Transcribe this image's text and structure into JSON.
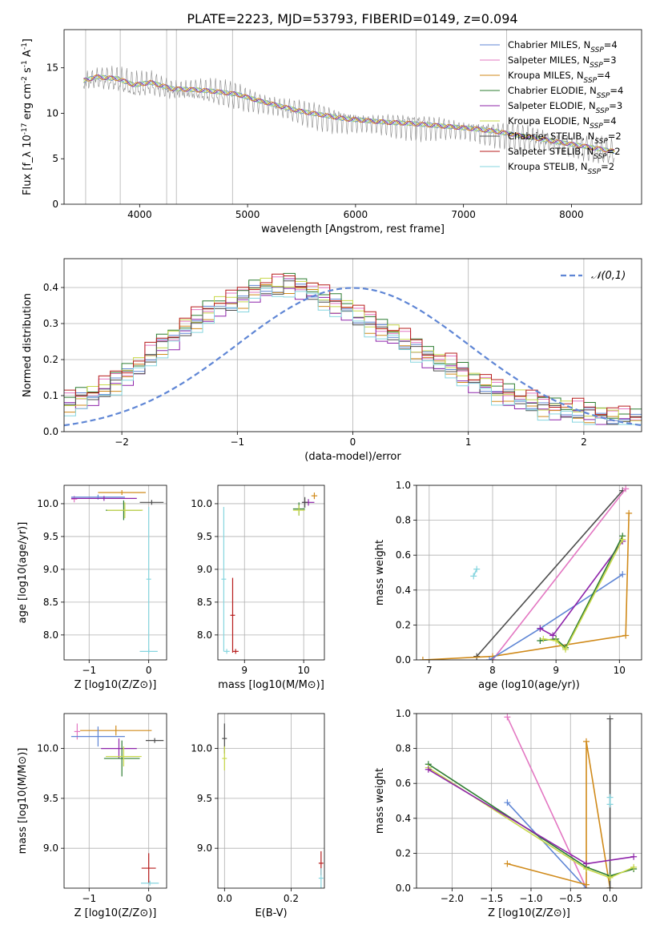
{
  "figure": {
    "suptitle": "PLATE=2223, MJD=53793, FIBERID=0149, z=0.094"
  },
  "colors": {
    "Chabrier MILES": "#5f86d5",
    "Salpeter MILES": "#e377c2",
    "Kroupa MILES": "#d08a1a",
    "Chabrier ELODIE": "#2e7d32",
    "Salpeter ELODIE": "#8e24aa",
    "Kroupa ELODIE": "#c8d84a",
    "Chabrier STELIB": "#4d4d4d",
    "Salpeter STELIB": "#b71c1c",
    "Kroupa STELIB": "#86d5df",
    "normal": "#5f86d5",
    "data": "#888888"
  },
  "chart_data": [
    {
      "id": "spectrum",
      "type": "line",
      "xlabel": "wavelength [Angstrom, rest frame]",
      "ylabel": "Flux [f_λ 10^-17 erg cm^-2 s^-1 A^-1]",
      "xlim": [
        3300,
        8650
      ],
      "ylim": [
        0,
        19.2
      ],
      "xticks": [
        4000,
        5000,
        6000,
        7000,
        8000
      ],
      "yticks": [
        0,
        5,
        10,
        15
      ],
      "grid": false,
      "legend_position": "top-right",
      "legend": [
        {
          "label": "Chabrier MILES, N_SSP=4",
          "model": "Chabrier MILES"
        },
        {
          "label": "Salpeter MILES, N_SSP=3",
          "model": "Salpeter MILES"
        },
        {
          "label": "Kroupa MILES, N_SSP=4",
          "model": "Kroupa MILES"
        },
        {
          "label": "Chabrier ELODIE, N_SSP=4",
          "model": "Chabrier ELODIE"
        },
        {
          "label": "Salpeter ELODIE, N_SSP=3",
          "model": "Salpeter ELODIE"
        },
        {
          "label": "Kroupa ELODIE, N_SSP=4",
          "model": "Kroupa ELODIE"
        },
        {
          "label": "Chabrier STELIB, N_SSP=2",
          "model": "Chabrier STELIB"
        },
        {
          "label": "Salpeter STELIB, N_SSP=2",
          "model": "Salpeter STELIB"
        },
        {
          "label": "Kroupa STELIB, N_SSP=2",
          "model": "Kroupa STELIB"
        }
      ],
      "continuum": [
        [
          3480,
          13.4
        ],
        [
          3600,
          13.8
        ],
        [
          3800,
          13.6
        ],
        [
          3950,
          12.9
        ],
        [
          4100,
          13.2
        ],
        [
          4300,
          12.5
        ],
        [
          4500,
          12.4
        ],
        [
          4700,
          12.2
        ],
        [
          4900,
          11.9
        ],
        [
          5100,
          11.2
        ],
        [
          5300,
          10.6
        ],
        [
          5500,
          10.0
        ],
        [
          5700,
          9.6
        ],
        [
          5900,
          9.2
        ],
        [
          6100,
          9.0
        ],
        [
          6300,
          8.8
        ],
        [
          6500,
          8.7
        ],
        [
          6700,
          8.5
        ],
        [
          6900,
          8.3
        ],
        [
          7100,
          8.1
        ],
        [
          7300,
          7.8
        ],
        [
          7500,
          7.4
        ],
        [
          7700,
          7.0
        ],
        [
          7900,
          6.6
        ],
        [
          8100,
          6.2
        ],
        [
          8250,
          5.9
        ],
        [
          8400,
          5.6
        ]
      ]
    },
    {
      "id": "residuals",
      "type": "area",
      "xlabel": "(data-model)/error",
      "ylabel": "Normed distribution",
      "xlim": [
        -2.5,
        2.5
      ],
      "ylim": [
        0,
        0.48
      ],
      "xticks": [
        -2,
        -1,
        0,
        1,
        2
      ],
      "yticks": [
        0.0,
        0.1,
        0.2,
        0.3,
        0.4
      ],
      "grid": true,
      "legend_position": "top-right",
      "legend": [
        {
          "label": "𝒩(0,1)",
          "model": "normal"
        }
      ],
      "bin_width": 0.1,
      "base": [
        0.08,
        0.09,
        0.1,
        0.12,
        0.14,
        0.16,
        0.18,
        0.21,
        0.24,
        0.26,
        0.29,
        0.31,
        0.33,
        0.35,
        0.36,
        0.37,
        0.39,
        0.4,
        0.4,
        0.41,
        0.4,
        0.39,
        0.37,
        0.35,
        0.34,
        0.32,
        0.3,
        0.28,
        0.27,
        0.25,
        0.23,
        0.21,
        0.19,
        0.18,
        0.16,
        0.14,
        0.13,
        0.11,
        0.1,
        0.09,
        0.08,
        0.07,
        0.065,
        0.06,
        0.055,
        0.05,
        0.045,
        0.04,
        0.035,
        0.03
      ]
    },
    {
      "id": "age_vs_Z",
      "type": "scatter",
      "xlabel": "Z [log10(Z/Z⊙)]",
      "ylabel": "age [log10(age/yr)]",
      "xlim": [
        -1.42,
        0.3
      ],
      "ylim": [
        7.62,
        10.28
      ],
      "xticks": [
        -1,
        0
      ],
      "yticks": [
        8.0,
        8.5,
        9.0,
        9.5,
        10.0
      ],
      "grid": true,
      "points": [
        {
          "model": "Kroupa MILES",
          "x": -0.45,
          "y": 10.17,
          "xerr": 0.4,
          "yerr": 0.0
        },
        {
          "model": "Salpeter MILES",
          "x": -1.25,
          "y": 10.07,
          "xerr": 0.05,
          "yerr": 0.05
        },
        {
          "model": "Chabrier MILES",
          "x": -0.85,
          "y": 10.1,
          "xerr": 0.45,
          "yerr": 0.0
        },
        {
          "model": "Salpeter ELODIE",
          "x": -0.75,
          "y": 10.08,
          "xerr": 0.55,
          "yerr": 0.0
        },
        {
          "model": "Chabrier STELIB",
          "x": 0.05,
          "y": 10.02,
          "xerr": 0.2,
          "yerr": 0.0
        },
        {
          "model": "Chabrier ELODIE",
          "x": -0.42,
          "y": 9.9,
          "xerr": 0.3,
          "yerr": 0.15
        },
        {
          "model": "Kroupa ELODIE",
          "x": -0.4,
          "y": 9.9,
          "xerr": 0.3,
          "yerr": 0.12
        },
        {
          "model": "Kroupa STELIB",
          "x": 0.0,
          "y": 7.75,
          "xerr": 0.15,
          "yerr": 0.0
        },
        {
          "model": "Kroupa STELIB",
          "x": 0.0,
          "y": 8.85,
          "xerr": 0.0,
          "yerr": 1.1
        }
      ]
    },
    {
      "id": "age_vs_mass",
      "type": "scatter",
      "xlabel": "mass [log10(M/M⊙)]",
      "ylabel": "",
      "xlim": [
        8.55,
        10.35
      ],
      "ylim": [
        7.62,
        10.28
      ],
      "xticks": [
        9,
        10
      ],
      "yticks": [
        8.0,
        8.5,
        9.0,
        9.5,
        10.0
      ],
      "grid": true,
      "points": [
        {
          "model": "Kroupa MILES",
          "x": 10.18,
          "y": 10.12,
          "xerr": 0.05,
          "yerr": 0.05
        },
        {
          "model": "Salpeter ELODIE",
          "x": 10.08,
          "y": 10.02,
          "xerr": 0.1,
          "yerr": 0.05
        },
        {
          "model": "Chabrier ELODIE",
          "x": 9.92,
          "y": 9.92,
          "xerr": 0.1,
          "yerr": 0.1
        },
        {
          "model": "Kroupa ELODIE",
          "x": 9.92,
          "y": 9.9,
          "xerr": 0.1,
          "yerr": 0.08
        },
        {
          "model": "Chabrier STELIB",
          "x": 10.02,
          "y": 10.02,
          "xerr": 0.05,
          "yerr": 0.08
        },
        {
          "model": "Kroupa STELIB",
          "x": 8.65,
          "y": 8.85,
          "xerr": 0.0,
          "yerr": 1.1
        },
        {
          "model": "Kroupa STELIB",
          "x": 8.7,
          "y": 7.75,
          "xerr": 0.05,
          "yerr": 0.0
        },
        {
          "model": "Salpeter STELIB",
          "x": 8.8,
          "y": 8.3,
          "xerr": 0.0,
          "yerr": 0.57
        },
        {
          "model": "Salpeter STELIB",
          "x": 8.85,
          "y": 7.75,
          "xerr": 0.05,
          "yerr": 0.0
        }
      ]
    },
    {
      "id": "weight_vs_age",
      "type": "line",
      "xlabel": "age (log10(age/yr))",
      "ylabel": "mass weight",
      "xlim": [
        6.8,
        10.35
      ],
      "ylim": [
        0,
        1.0
      ],
      "xticks": [
        7,
        8,
        9,
        10
      ],
      "yticks": [
        0.0,
        0.2,
        0.4,
        0.6,
        0.8,
        1.0
      ],
      "grid": true,
      "series": [
        {
          "model": "Kroupa STELIB",
          "x": [
            7.7,
            7.75
          ],
          "y": [
            0.48,
            0.52
          ]
        },
        {
          "model": "Chabrier STELIB",
          "x": [
            7.75,
            10.05
          ],
          "y": [
            0.02,
            0.97
          ]
        },
        {
          "model": "Salpeter MILES",
          "x": [
            8.0,
            10.1
          ],
          "y": [
            0.0,
            0.98
          ]
        },
        {
          "model": "Kroupa MILES",
          "x": [
            6.9,
            8.0,
            10.1,
            10.15
          ],
          "y": [
            0.0,
            0.02,
            0.14,
            0.84
          ]
        },
        {
          "model": "Chabrier MILES",
          "x": [
            7.95,
            8.75,
            10.05
          ],
          "y": [
            0.0,
            0.18,
            0.49
          ]
        },
        {
          "model": "Salpeter ELODIE",
          "x": [
            8.75,
            8.95,
            10.05
          ],
          "y": [
            0.18,
            0.14,
            0.68
          ]
        },
        {
          "model": "Chabrier ELODIE",
          "x": [
            8.75,
            9.0,
            9.15,
            10.05
          ],
          "y": [
            0.11,
            0.12,
            0.07,
            0.71
          ]
        },
        {
          "model": "Kroupa ELODIE",
          "x": [
            8.8,
            9.0,
            9.15,
            10.05
          ],
          "y": [
            0.12,
            0.11,
            0.06,
            0.69
          ]
        }
      ]
    },
    {
      "id": "mass_vs_Z",
      "type": "scatter",
      "xlabel": "Z [log10(Z/Z⊙)]",
      "ylabel": "mass [log10(M/M⊙)]",
      "xlim": [
        -1.42,
        0.3
      ],
      "ylim": [
        8.6,
        10.35
      ],
      "xticks": [
        -1,
        0
      ],
      "yticks": [
        9.0,
        9.5,
        10.0
      ],
      "grid": true,
      "points": [
        {
          "model": "Salpeter MILES",
          "x": -1.2,
          "y": 10.17,
          "xerr": 0.05,
          "yerr": 0.08
        },
        {
          "model": "Kroupa MILES",
          "x": -0.55,
          "y": 10.18,
          "xerr": 0.6,
          "yerr": 0.05
        },
        {
          "model": "Chabrier MILES",
          "x": -0.85,
          "y": 10.12,
          "xerr": 0.45,
          "yerr": 0.1
        },
        {
          "model": "Salpeter ELODIE",
          "x": -0.5,
          "y": 10.0,
          "xerr": 0.3,
          "yerr": 0.1
        },
        {
          "model": "Chabrier STELIB",
          "x": 0.1,
          "y": 10.08,
          "xerr": 0.15,
          "yerr": 0.0
        },
        {
          "model": "Chabrier ELODIE",
          "x": -0.45,
          "y": 9.9,
          "xerr": 0.3,
          "yerr": 0.18
        },
        {
          "model": "Kroupa ELODIE",
          "x": -0.42,
          "y": 9.92,
          "xerr": 0.3,
          "yerr": 0.1
        },
        {
          "model": "Salpeter STELIB",
          "x": 0.0,
          "y": 8.8,
          "xerr": 0.12,
          "yerr": 0.15
        },
        {
          "model": "Kroupa STELIB",
          "x": 0.02,
          "y": 8.65,
          "xerr": 0.15,
          "yerr": 0.0
        }
      ]
    },
    {
      "id": "mass_vs_ebv",
      "type": "scatter",
      "xlabel": "E(B-V)",
      "ylabel": "",
      "xlim": [
        -0.02,
        0.3
      ],
      "ylim": [
        8.6,
        10.35
      ],
      "xticks": [
        0.0,
        0.2
      ],
      "yticks": [
        9.0,
        9.5,
        10.0
      ],
      "grid": true,
      "points": [
        {
          "model": "Chabrier STELIB",
          "x": 0.0,
          "y": 10.1,
          "xerr": 0.0,
          "yerr": 0.15
        },
        {
          "model": "Kroupa ELODIE",
          "x": 0.0,
          "y": 9.9,
          "xerr": 0.0,
          "yerr": 0.12
        },
        {
          "model": "Salpeter STELIB",
          "x": 0.29,
          "y": 8.85,
          "xerr": 0.0,
          "yerr": 0.12
        },
        {
          "model": "Kroupa STELIB",
          "x": 0.29,
          "y": 8.7,
          "xerr": 0.0,
          "yerr": 0.1
        }
      ]
    },
    {
      "id": "weight_vs_Z",
      "type": "line",
      "xlabel": "Z [log10(Z/Z⊙)]",
      "ylabel": "mass weight",
      "xlim": [
        -2.45,
        0.4
      ],
      "ylim": [
        0,
        1.0
      ],
      "xticks": [
        -2.0,
        -1.5,
        -1.0,
        -0.5,
        0.0
      ],
      "yticks": [
        0.0,
        0.2,
        0.4,
        0.6,
        0.8,
        1.0
      ],
      "grid": true,
      "series": [
        {
          "model": "Salpeter MILES",
          "x": [
            -1.3,
            -0.3
          ],
          "y": [
            0.98,
            0.0
          ]
        },
        {
          "model": "Chabrier MILES",
          "x": [
            -1.3,
            -0.3
          ],
          "y": [
            0.49,
            0.0
          ]
        },
        {
          "model": "Kroupa MILES",
          "x": [
            -1.3,
            -0.3,
            -0.3,
            0.0
          ],
          "y": [
            0.14,
            0.02,
            0.84,
            0.0
          ]
        },
        {
          "model": "Chabrier STELIB",
          "x": [
            0.0,
            0.0
          ],
          "y": [
            0.0,
            0.97
          ]
        },
        {
          "model": "Kroupa STELIB",
          "x": [
            0.0,
            0.0
          ],
          "y": [
            0.48,
            0.52
          ]
        },
        {
          "model": "Chabrier ELODIE",
          "x": [
            -2.3,
            -0.3,
            0.0,
            0.3
          ],
          "y": [
            0.71,
            0.12,
            0.07,
            0.11
          ]
        },
        {
          "model": "Kroupa ELODIE",
          "x": [
            -2.3,
            -0.3,
            0.0,
            0.3
          ],
          "y": [
            0.69,
            0.11,
            0.06,
            0.12
          ]
        },
        {
          "model": "Salpeter ELODIE",
          "x": [
            -2.3,
            -0.3,
            0.3
          ],
          "y": [
            0.68,
            0.14,
            0.18
          ]
        }
      ]
    }
  ]
}
